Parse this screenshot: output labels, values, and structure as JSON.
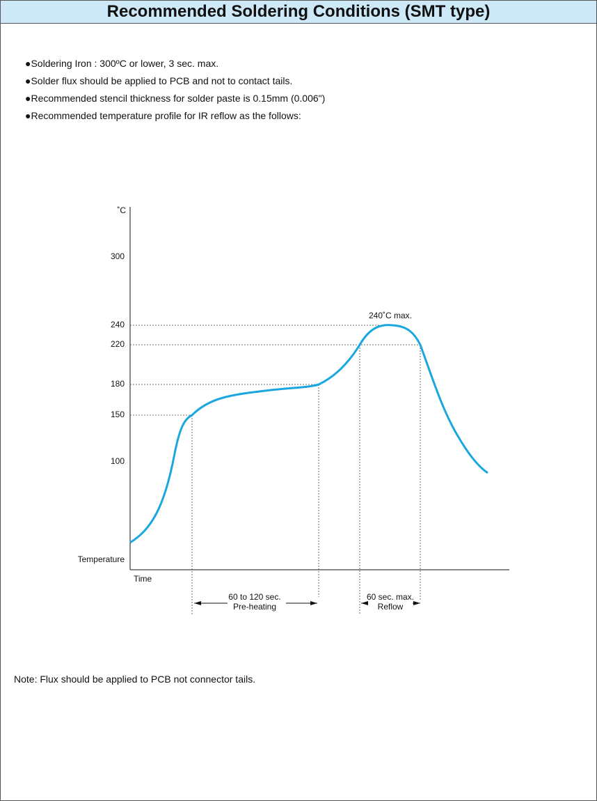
{
  "header": {
    "title": "Recommended Soldering Conditions (SMT type)"
  },
  "bullets": [
    "●Soldering Iron : 300ºC or lower, 3 sec. max.",
    "●Solder flux should be applied to PCB and not to contact tails.",
    "●Recommended stencil thickness for solder paste is 0.15mm (0.006\")",
    "●Recommended temperature profile for IR reflow as the follows:"
  ],
  "chart": {
    "y_unit": "˚C",
    "yticks": [
      300,
      240,
      220,
      180,
      150,
      100
    ],
    "y_label": "Temperature",
    "x_label": "Time",
    "peak_label": "240˚C max.",
    "preheat": {
      "time": "60 to 120 sec.",
      "label": "Pre-heating"
    },
    "reflow": {
      "time": "60 sec. max.",
      "label": "Reflow"
    }
  },
  "note": "Note: Flux should be applied to PCB not connector tails."
}
